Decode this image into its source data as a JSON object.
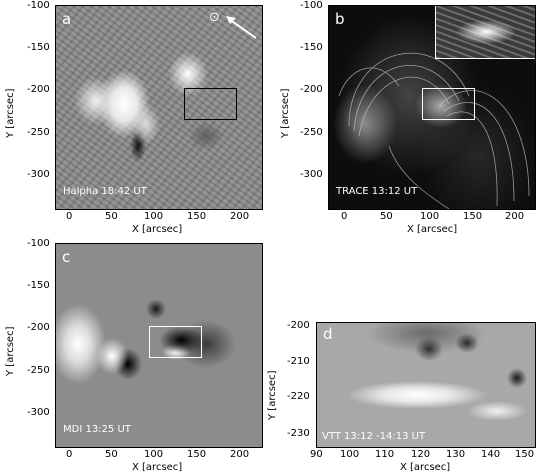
{
  "panels": {
    "a": {
      "letter": "a",
      "caption": "Halpha 18:42 UT",
      "xlabel": "X [arcsec]",
      "ylabel": "Y [arcsec]",
      "xticks": [
        "0",
        "50",
        "100",
        "150",
        "200"
      ],
      "yticks": [
        "-100",
        "-150",
        "-200",
        "-250",
        "-300"
      ],
      "sun_symbol": "⊙"
    },
    "b": {
      "letter": "b",
      "caption": "TRACE 13:12 UT",
      "xlabel": "X [arcsec]",
      "ylabel": "Y [arcsec]",
      "xticks": [
        "0",
        "50",
        "100",
        "150",
        "200"
      ],
      "yticks": [
        "-100",
        "-150",
        "-200",
        "-250",
        "-300"
      ]
    },
    "c": {
      "letter": "c",
      "caption": "MDI 13:25 UT",
      "xlabel": "X [arcsec]",
      "ylabel": "Y [arcsec]",
      "xticks": [
        "0",
        "50",
        "100",
        "150",
        "200"
      ],
      "yticks": [
        "-100",
        "-150",
        "-200",
        "-250",
        "-300"
      ]
    },
    "d": {
      "letter": "d",
      "caption": "VTT 13:12 -14:13 UT",
      "xlabel": "X [arcsec]",
      "ylabel": "Y [arcsec]",
      "xticks": [
        "90",
        "100",
        "110",
        "120",
        "130",
        "140",
        "150"
      ],
      "yticks": [
        "-200",
        "-210",
        "-220",
        "-230"
      ]
    }
  },
  "colors": {
    "halpha": "#8a8a8a",
    "trace": "#0d0d0d",
    "mdi": "#8c8c8c",
    "vtt": "#a8a8a8"
  }
}
